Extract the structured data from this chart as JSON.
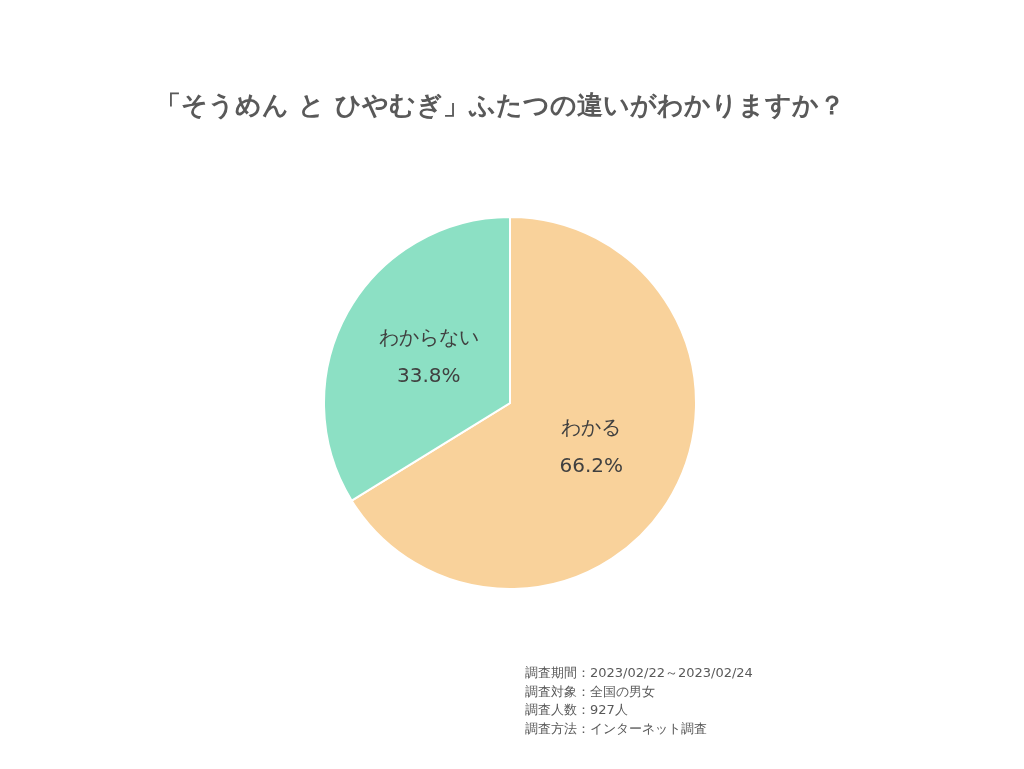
{
  "chart_data": {
    "type": "pie",
    "title": "「そうめん と ひやむぎ」ふたつの違いがわかりますか？",
    "categories": [
      "わかる",
      "わからない"
    ],
    "values": [
      66.2,
      33.8
    ],
    "colors": [
      "#f9d29b",
      "#8ce0c4"
    ],
    "value_labels": [
      "66.2%",
      "33.8%"
    ],
    "annotations": [
      "調査期間：2023/02/22～2023/02/24",
      "調査対象：全国の男女",
      "調査人数：927人",
      "調査方法：インターネット調査"
    ]
  }
}
